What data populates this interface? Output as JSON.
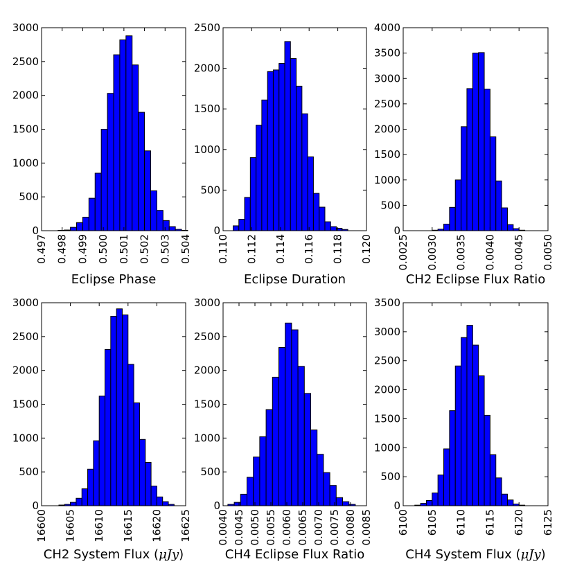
{
  "chart_data": [
    {
      "type": "bar",
      "xlabel": "Eclipse Phase",
      "xlim": [
        0.497,
        0.504
      ],
      "ylim": [
        0,
        3000
      ],
      "xticks": [
        "0.497",
        "0.498",
        "0.499",
        "0.500",
        "0.501",
        "0.502",
        "0.503",
        "0.504"
      ],
      "yticks": [
        "0",
        "500",
        "1000",
        "1500",
        "2000",
        "2500",
        "3000"
      ],
      "bin_start": 0.4978,
      "bin_width": 0.0003,
      "values": [
        5,
        10,
        50,
        120,
        200,
        480,
        850,
        1500,
        2030,
        2600,
        2820,
        2880,
        2450,
        1750,
        1180,
        590,
        300,
        150,
        60,
        20,
        5
      ]
    },
    {
      "type": "bar",
      "xlabel": "Eclipse Duration",
      "xlim": [
        0.11,
        0.12
      ],
      "ylim": [
        0,
        2500
      ],
      "xticks": [
        "0.110",
        "0.112",
        "0.114",
        "0.116",
        "0.118",
        "0.120"
      ],
      "yticks": [
        "0",
        "500",
        "1000",
        "1500",
        "2000",
        "2500"
      ],
      "bin_start": 0.1107,
      "bin_width": 0.0004,
      "values": [
        60,
        140,
        410,
        900,
        1300,
        1610,
        1960,
        1980,
        2060,
        2330,
        2120,
        1780,
        1440,
        910,
        460,
        290,
        110,
        50,
        30,
        15
      ]
    },
    {
      "type": "bar",
      "xlabel": "CH2 Eclipse Flux Ratio",
      "xlim": [
        0.0025,
        0.005
      ],
      "ylim": [
        0,
        4000
      ],
      "xticks": [
        "0.0025",
        "0.0030",
        "0.0035",
        "0.0040",
        "0.0045",
        "0.0050"
      ],
      "yticks": [
        "0",
        "500",
        "1000",
        "1500",
        "2000",
        "2500",
        "3000",
        "3500",
        "4000"
      ],
      "bin_start": 0.003,
      "bin_width": 0.0001,
      "values": [
        10,
        30,
        130,
        460,
        1000,
        2050,
        2800,
        3500,
        3510,
        2790,
        1850,
        980,
        450,
        120,
        40,
        10
      ]
    },
    {
      "type": "bar",
      "xlabel": "CH2 System Flux ($\\mu Jy$)",
      "xlim": [
        16600,
        16625
      ],
      "ylim": [
        0,
        3000
      ],
      "xticks": [
        "16600",
        "16605",
        "16610",
        "16615",
        "16620",
        "16625"
      ],
      "yticks": [
        "0",
        "500",
        "1000",
        "1500",
        "2000",
        "2500",
        "3000"
      ],
      "bin_start": 16603.0,
      "bin_width": 1.0,
      "values": [
        10,
        20,
        50,
        110,
        250,
        540,
        960,
        1620,
        2310,
        2800,
        2910,
        2820,
        2090,
        1520,
        980,
        640,
        290,
        130,
        60,
        20
      ]
    },
    {
      "type": "bar",
      "xlabel": "CH4 Eclipse Flux Ratio",
      "xlim": [
        0.004,
        0.0085
      ],
      "ylim": [
        0,
        3000
      ],
      "xticks": [
        "0.0040",
        "0.0045",
        "0.0050",
        "0.0055",
        "0.0060",
        "0.0065",
        "0.0070",
        "0.0075",
        "0.0080",
        "0.0085"
      ],
      "yticks": [
        "0",
        "500",
        "1000",
        "1500",
        "2000",
        "2500",
        "3000"
      ],
      "bin_start": 0.00415,
      "bin_width": 0.0002,
      "values": [
        20,
        50,
        170,
        420,
        720,
        1020,
        1420,
        1900,
        2340,
        2700,
        2600,
        2060,
        1660,
        1120,
        760,
        490,
        300,
        120,
        60,
        20
      ]
    },
    {
      "type": "bar",
      "xlabel": "CH4 System Flux ($\\mu Jy$)",
      "xlim": [
        6100,
        6125
      ],
      "ylim": [
        0,
        3500
      ],
      "xticks": [
        "6100",
        "6105",
        "6110",
        "6115",
        "6120",
        "6125"
      ],
      "yticks": [
        "0",
        "500",
        "1000",
        "1500",
        "2000",
        "2500",
        "3000",
        "3500"
      ],
      "bin_start": 6102.0,
      "bin_width": 1.0,
      "values": [
        10,
        40,
        90,
        220,
        530,
        980,
        1640,
        2410,
        2900,
        3110,
        2770,
        2240,
        1560,
        880,
        480,
        200,
        100,
        30,
        10
      ]
    }
  ]
}
